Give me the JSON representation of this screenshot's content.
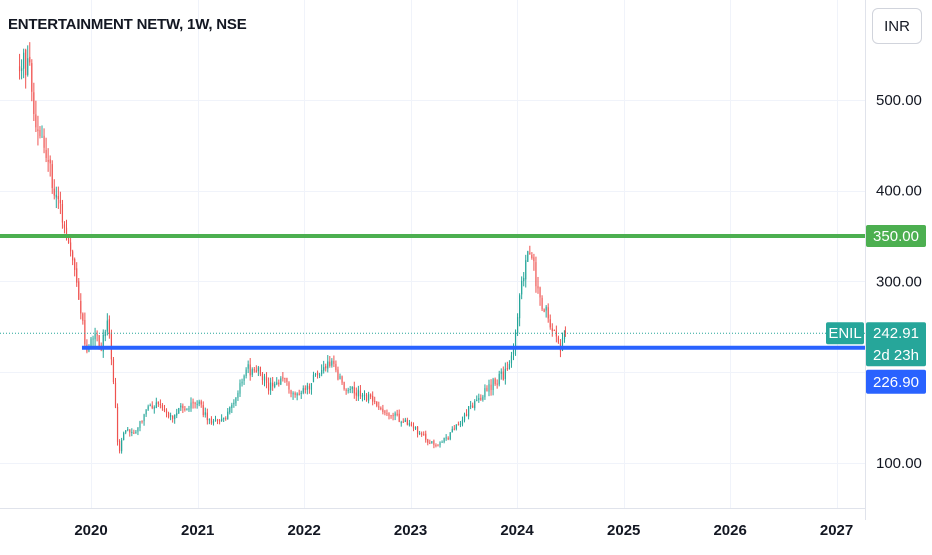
{
  "header": {
    "title": "ENTERTAINMENT NETW, 1W, NSE",
    "currency": "INR"
  },
  "price_scale": {
    "ticks": [
      "100.00",
      "300.00",
      "400.00",
      "500.00"
    ]
  },
  "badges": {
    "resistance_value": "350.00",
    "symbol": "ENIL",
    "last_price": "242.91",
    "countdown": "2d 23h",
    "support_value": "226.90"
  },
  "colors": {
    "up": "#26a69a",
    "down": "#ef5350",
    "resistance": "#4caf50",
    "support": "#2962ff",
    "last_price_line": "#26a69a",
    "grid": "#f0f3fa",
    "axis_text": "#131722"
  },
  "chart_data": {
    "type": "candlestick",
    "title": "ENTERTAINMENT NETW, 1W, NSE",
    "currency": "INR",
    "y_axis": {
      "position": "right",
      "range": [
        55,
        600
      ],
      "ticks": [
        100,
        300,
        400,
        500
      ]
    },
    "x_axis": {
      "labels": [
        "2020",
        "2021",
        "2022",
        "2023",
        "2024",
        "2025",
        "2026",
        "2027"
      ]
    },
    "grid": true,
    "series": [
      {
        "symbol": "ENIL",
        "last_price": 242.91,
        "path": [
          [
            "2019-05-01",
            548
          ],
          [
            "2019-06-01",
            535
          ],
          [
            "2019-07-01",
            470
          ],
          [
            "2019-08-01",
            440
          ],
          [
            "2019-09-01",
            400
          ],
          [
            "2019-10-01",
            365
          ],
          [
            "2019-10-25",
            325
          ],
          [
            "2019-11-25",
            275
          ],
          [
            "2019-12-15",
            222
          ],
          [
            "2020-01-15",
            238
          ],
          [
            "2020-02-05",
            228
          ],
          [
            "2020-02-28",
            255
          ],
          [
            "2020-03-20",
            180
          ],
          [
            "2020-04-05",
            105
          ],
          [
            "2020-04-25",
            140
          ],
          [
            "2020-05-25",
            133
          ],
          [
            "2020-07-10",
            158
          ],
          [
            "2020-08-20",
            165
          ],
          [
            "2020-10-01",
            150
          ],
          [
            "2020-11-15",
            162
          ],
          [
            "2021-01-01",
            165
          ],
          [
            "2021-02-15",
            145
          ],
          [
            "2021-04-01",
            147
          ],
          [
            "2021-05-20",
            180
          ],
          [
            "2021-06-20",
            203
          ],
          [
            "2021-08-01",
            200
          ],
          [
            "2021-09-01",
            185
          ],
          [
            "2021-10-15",
            192
          ],
          [
            "2021-12-01",
            175
          ],
          [
            "2022-01-15",
            185
          ],
          [
            "2022-03-01",
            205
          ],
          [
            "2022-04-01",
            212
          ],
          [
            "2022-05-15",
            185
          ],
          [
            "2022-07-01",
            178
          ],
          [
            "2022-08-15",
            170
          ],
          [
            "2022-10-01",
            160
          ],
          [
            "2022-11-15",
            150
          ],
          [
            "2022-12-31",
            143
          ],
          [
            "2023-02-15",
            128
          ],
          [
            "2023-04-01",
            117
          ],
          [
            "2023-05-15",
            130
          ],
          [
            "2023-07-01",
            150
          ],
          [
            "2023-08-15",
            170
          ],
          [
            "2023-10-01",
            185
          ],
          [
            "2023-11-10",
            196
          ],
          [
            "2023-12-10",
            205
          ],
          [
            "2024-01-01",
            260
          ],
          [
            "2024-01-20",
            298
          ],
          [
            "2024-02-05",
            330
          ],
          [
            "2024-02-18",
            345
          ],
          [
            "2024-03-05",
            295
          ],
          [
            "2024-03-20",
            278
          ],
          [
            "2024-04-05",
            272
          ],
          [
            "2024-04-25",
            250
          ],
          [
            "2024-05-15",
            236
          ],
          [
            "2024-05-28",
            220
          ],
          [
            "2024-06-08",
            236
          ],
          [
            "2024-06-15",
            242.91
          ]
        ]
      }
    ],
    "horizontal_lines": [
      {
        "label": "resistance",
        "value": 350.0,
        "color": "#4caf50"
      },
      {
        "label": "support",
        "value": 226.9,
        "color": "#2962ff"
      }
    ],
    "price_line": {
      "value": 242.91,
      "countdown": "2d 23h"
    }
  }
}
